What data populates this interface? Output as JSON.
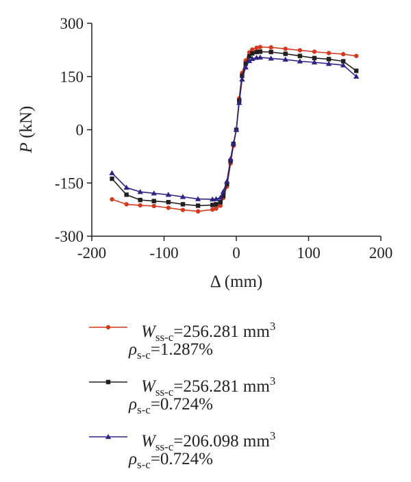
{
  "chart_data": {
    "type": "line",
    "xlabel": "Δ (mm)",
    "ylabel_var": "P",
    "ylabel_unit": " (kN)",
    "xlim": [
      -200,
      200
    ],
    "ylim": [
      -300,
      300
    ],
    "x_ticks": [
      "-200",
      "-100",
      "0",
      "100",
      "200"
    ],
    "y_ticks": [
      "300",
      "150",
      "0",
      "-150",
      "-300"
    ],
    "grid": false,
    "legend_position": "bottom",
    "series": [
      {
        "name": "Wss-c=256.281 mm3, ρs-c=1.287%",
        "color": "#d4391f",
        "marker": "circle",
        "x": [
          -172,
          -152,
          -133,
          -114,
          -94,
          -74,
          -53,
          -33,
          -28,
          -22,
          -18,
          -13,
          -8,
          -4,
          0,
          4,
          8,
          13,
          18,
          22,
          28,
          33,
          48,
          68,
          88,
          108,
          128,
          148,
          166
        ],
        "y": [
          -196,
          -210,
          -213,
          -215,
          -220,
          -226,
          -230,
          -225,
          -222,
          -214,
          -192,
          -160,
          -95,
          -45,
          0,
          88,
          160,
          195,
          218,
          226,
          231,
          233,
          232,
          228,
          224,
          220,
          216,
          213,
          208
        ]
      },
      {
        "name": "Wss-c=256.281 mm3, ρs-c=0.724%",
        "color": "#231f20",
        "marker": "square",
        "x": [
          -172,
          -152,
          -133,
          -114,
          -94,
          -74,
          -53,
          -33,
          -28,
          -22,
          -18,
          -13,
          -8,
          -4,
          0,
          4,
          8,
          13,
          18,
          22,
          28,
          33,
          48,
          68,
          88,
          108,
          128,
          148,
          166
        ],
        "y": [
          -138,
          -183,
          -198,
          -201,
          -204,
          -210,
          -214,
          -212,
          -210,
          -204,
          -186,
          -153,
          -88,
          -40,
          0,
          82,
          152,
          186,
          207,
          215,
          219,
          220,
          219,
          214,
          208,
          202,
          199,
          193,
          166
        ]
      },
      {
        "name": "Wss-c=206.098 mm3, ρs-c=0.724%",
        "color": "#2e2483",
        "marker": "triangle",
        "x": [
          -172,
          -152,
          -133,
          -114,
          -94,
          -74,
          -53,
          -33,
          -28,
          -22,
          -18,
          -13,
          -8,
          -4,
          0,
          4,
          8,
          13,
          18,
          22,
          28,
          33,
          48,
          68,
          88,
          108,
          128,
          148,
          166
        ],
        "y": [
          -122,
          -163,
          -175,
          -179,
          -183,
          -189,
          -195,
          -196,
          -195,
          -191,
          -174,
          -145,
          -82,
          -38,
          0,
          76,
          142,
          176,
          194,
          200,
          203,
          204,
          201,
          198,
          193,
          190,
          186,
          182,
          150
        ]
      }
    ]
  },
  "legend": [
    {
      "w_sym": "W",
      "w_sub": "ss-c",
      "w_val": "=256.281 mm",
      "w_sup": "3",
      "rho_sym": "ρ",
      "rho_sub": "s-c",
      "rho_val": "=1.287%"
    },
    {
      "w_sym": "W",
      "w_sub": "ss-c",
      "w_val": "=256.281 mm",
      "w_sup": "3",
      "rho_sym": "ρ",
      "rho_sub": "s-c",
      "rho_val": "=0.724%"
    },
    {
      "w_sym": "W",
      "w_sub": "ss-c",
      "w_val": "=206.098 mm",
      "w_sup": "3",
      "rho_sym": "ρ",
      "rho_sub": "s-c",
      "rho_val": "=0.724%"
    }
  ]
}
